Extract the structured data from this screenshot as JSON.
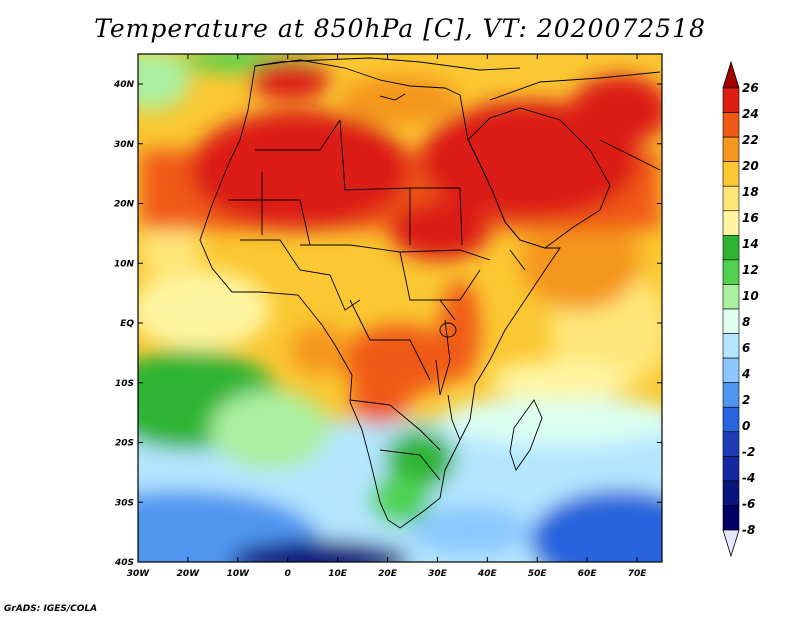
{
  "title": "Temperature at 850hPa [C], VT: 2020072518",
  "credit": "GrADS: IGES/COLA",
  "map": {
    "lon_ticks": [
      "30W",
      "20W",
      "10W",
      "0",
      "10E",
      "20E",
      "30E",
      "40E",
      "50E",
      "60E",
      "70E"
    ],
    "lat_ticks": [
      "40N",
      "30N",
      "20N",
      "10N",
      "EQ",
      "10S",
      "20S",
      "30S",
      "40S"
    ]
  },
  "colorbar": {
    "labels": [
      "26",
      "24",
      "22",
      "20",
      "18",
      "16",
      "14",
      "12",
      "10",
      "8",
      "6",
      "4",
      "2",
      "0",
      "-2",
      "-4",
      "-6",
      "-8"
    ],
    "colors": [
      "#a50000",
      "#dc1e14",
      "#f05a14",
      "#f5961e",
      "#fac832",
      "#ffe678",
      "#fff5a0",
      "#2fb432",
      "#50d250",
      "#aaf0a0",
      "#dcfff0",
      "#b4e6ff",
      "#8cc8ff",
      "#5096f0",
      "#2864dc",
      "#1e3cb4",
      "#1428a0",
      "#0a147d",
      "#000064",
      "#e6e6ff"
    ]
  }
}
